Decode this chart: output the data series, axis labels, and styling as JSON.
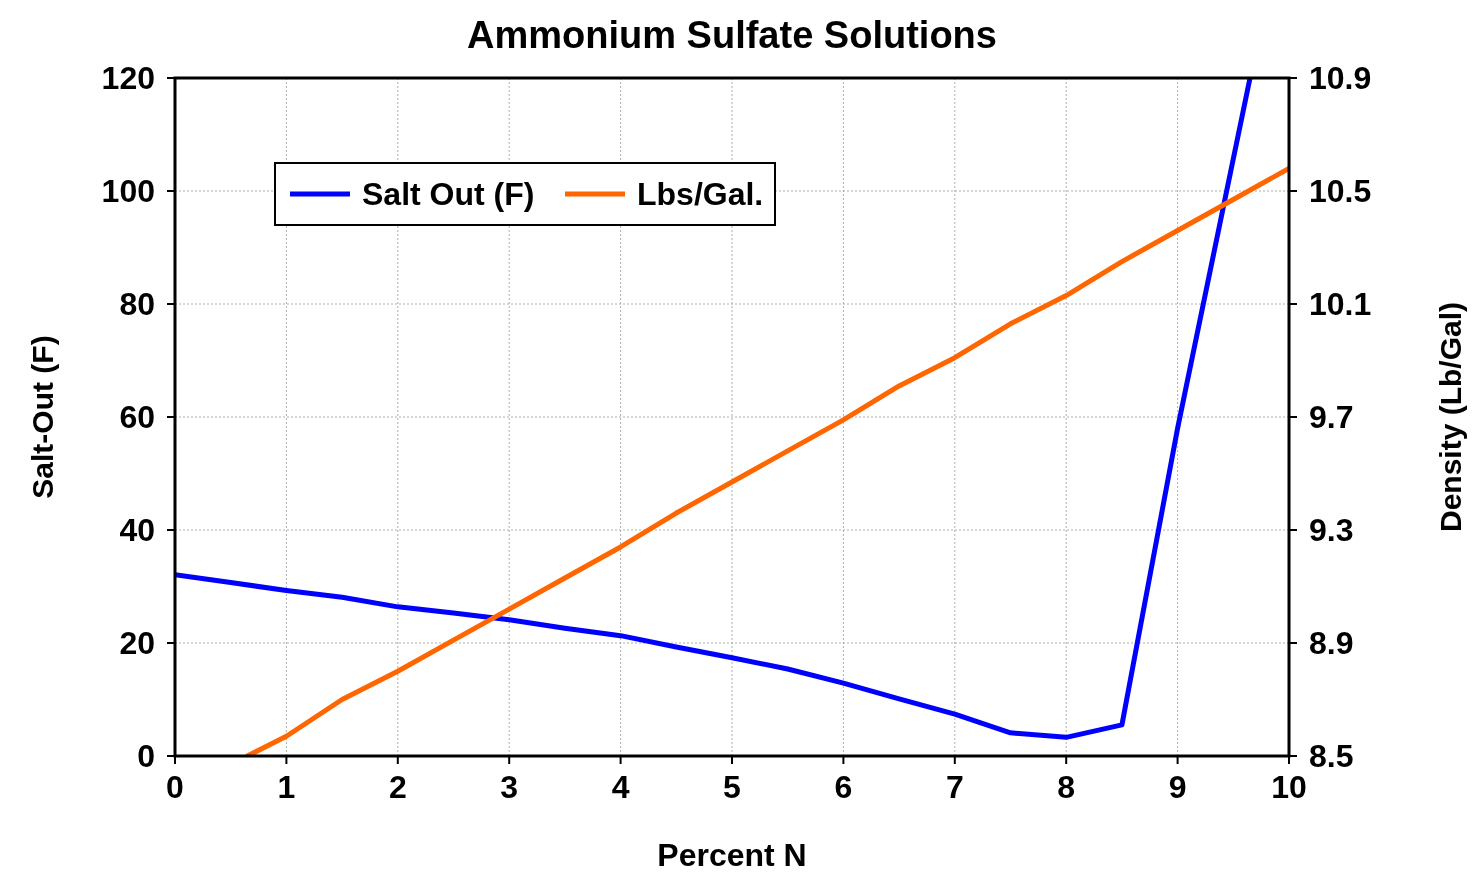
{
  "chart_data": {
    "type": "line",
    "title": "Ammonium Sulfate Solutions",
    "xlabel": "Percent N",
    "ylabel": "Salt-Out (F)",
    "y2label": "Density (Lb/Gal)",
    "xlim": [
      0,
      10
    ],
    "xticks": [
      0,
      1,
      2,
      3,
      4,
      5,
      6,
      7,
      8,
      9,
      10
    ],
    "ylim": [
      0,
      120
    ],
    "yticks": [
      0,
      20,
      40,
      60,
      80,
      100,
      120
    ],
    "y2lim": [
      8.5,
      10.9
    ],
    "y2ticks": [
      8.5,
      8.9,
      9.3,
      9.7,
      10.1,
      10.5,
      10.9
    ],
    "grid": true,
    "legend": "top left",
    "marker": "none",
    "line_style": "solid",
    "series": [
      {
        "name": "Salt Out (F)",
        "color": "#0000ff",
        "x": [
          0,
          0.5,
          1,
          1.5,
          2,
          2.5,
          3,
          3.5,
          4,
          4.5,
          5,
          5.5,
          6,
          6.5,
          7,
          7.5,
          8,
          8.5,
          9,
          9.65
        ],
        "values": [
          32.1,
          30.7,
          29.3,
          28.1,
          26.4,
          25.3,
          24.1,
          22.6,
          21.3,
          19.3,
          17.4,
          15.4,
          12.9,
          10.1,
          7.4,
          4.1,
          3.3,
          5.5,
          58,
          120
        ]
      },
      {
        "name": "Lbs/Gal.",
        "color": "#ff6600",
        "axis": "y2",
        "x": [
          0.65,
          1,
          1.5,
          2,
          2.5,
          3,
          3.5,
          4,
          4.5,
          5,
          5.5,
          6,
          6.5,
          7,
          7.5,
          8,
          8.5,
          9,
          9.5,
          10
        ],
        "values": [
          8.5,
          8.57,
          8.7,
          8.8,
          8.91,
          9.02,
          9.13,
          9.24,
          9.36,
          9.47,
          9.58,
          9.69,
          9.81,
          9.91,
          10.03,
          10.13,
          10.25,
          10.36,
          10.47,
          10.58
        ]
      }
    ]
  }
}
